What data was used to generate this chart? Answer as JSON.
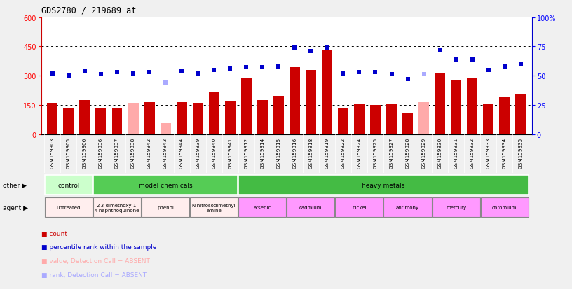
{
  "title": "GDS2780 / 219689_at",
  "samples": [
    "GSM159303",
    "GSM159305",
    "GSM159306",
    "GSM159336",
    "GSM159337",
    "GSM159338",
    "GSM159342",
    "GSM159343",
    "GSM159344",
    "GSM159339",
    "GSM159340",
    "GSM159341",
    "GSM159312",
    "GSM159314",
    "GSM159315",
    "GSM159316",
    "GSM159318",
    "GSM159319",
    "GSM159322",
    "GSM159324",
    "GSM159325",
    "GSM159327",
    "GSM159328",
    "GSM159329",
    "GSM159330",
    "GSM159331",
    "GSM159332",
    "GSM159333",
    "GSM159334",
    "GSM159335"
  ],
  "bar_values": [
    160,
    130,
    175,
    130,
    135,
    160,
    165,
    55,
    165,
    160,
    215,
    170,
    285,
    175,
    195,
    345,
    330,
    435,
    135,
    155,
    150,
    155,
    105,
    165,
    310,
    280,
    285,
    155,
    190,
    205
  ],
  "bar_absent": [
    false,
    false,
    false,
    false,
    false,
    true,
    false,
    true,
    false,
    false,
    false,
    false,
    false,
    false,
    false,
    false,
    false,
    false,
    false,
    false,
    false,
    false,
    false,
    true,
    false,
    false,
    false,
    false,
    false,
    false
  ],
  "dot_values": [
    52,
    50,
    54,
    51,
    53,
    52,
    53,
    44,
    54,
    52,
    55,
    56,
    57,
    57,
    58,
    74,
    71,
    74,
    52,
    53,
    53,
    51,
    47,
    51,
    72,
    64,
    64,
    55,
    58,
    60
  ],
  "dot_absent": [
    false,
    false,
    false,
    false,
    false,
    false,
    false,
    true,
    false,
    false,
    false,
    false,
    false,
    false,
    false,
    false,
    false,
    false,
    false,
    false,
    false,
    false,
    false,
    true,
    false,
    false,
    false,
    false,
    false,
    false
  ],
  "bar_color_normal": "#cc0000",
  "bar_color_absent": "#ffaaaa",
  "dot_color_normal": "#0000cc",
  "dot_color_absent": "#aaaaff",
  "ylim_left": [
    0,
    600
  ],
  "ylim_right": [
    0,
    100
  ],
  "yticks_left": [
    0,
    150,
    300,
    450,
    600
  ],
  "yticks_right": [
    0,
    25,
    50,
    75,
    100
  ],
  "ytick_labels_right": [
    "0",
    "25",
    "50",
    "75",
    "100%"
  ],
  "grid_values": [
    150,
    300,
    450
  ],
  "other_groups": [
    {
      "text": "control",
      "start": 0,
      "end": 3,
      "color": "#ccffcc"
    },
    {
      "text": "model chemicals",
      "start": 3,
      "end": 12,
      "color": "#55cc55"
    },
    {
      "text": "heavy metals",
      "start": 12,
      "end": 30,
      "color": "#44bb44"
    }
  ],
  "agent_groups": [
    {
      "text": "untreated",
      "start": 0,
      "end": 3,
      "color": "#ffeeee"
    },
    {
      "text": "2,3-dimethoxy-1,\n4-naphthoquinone",
      "start": 3,
      "end": 6,
      "color": "#ffeeee"
    },
    {
      "text": "phenol",
      "start": 6,
      "end": 9,
      "color": "#ffeeee"
    },
    {
      "text": "N-nitrosodimethyl\namine",
      "start": 9,
      "end": 12,
      "color": "#ffeeee"
    },
    {
      "text": "arsenic",
      "start": 12,
      "end": 15,
      "color": "#ff99ff"
    },
    {
      "text": "cadmium",
      "start": 15,
      "end": 18,
      "color": "#ff99ff"
    },
    {
      "text": "nickel",
      "start": 18,
      "end": 21,
      "color": "#ff99ff"
    },
    {
      "text": "antimony",
      "start": 21,
      "end": 24,
      "color": "#ff99ff"
    },
    {
      "text": "mercury",
      "start": 24,
      "end": 27,
      "color": "#ff99ff"
    },
    {
      "text": "chromium",
      "start": 27,
      "end": 30,
      "color": "#ff99ff"
    }
  ],
  "legend_items": [
    {
      "color": "#cc0000",
      "label": "count"
    },
    {
      "color": "#0000cc",
      "label": "percentile rank within the sample"
    },
    {
      "color": "#ffaaaa",
      "label": "value, Detection Call = ABSENT"
    },
    {
      "color": "#aaaaff",
      "label": "rank, Detection Call = ABSENT"
    }
  ],
  "fig_bg": "#f0f0f0",
  "plot_bg": "#ffffff",
  "xtick_bg": "#cccccc"
}
